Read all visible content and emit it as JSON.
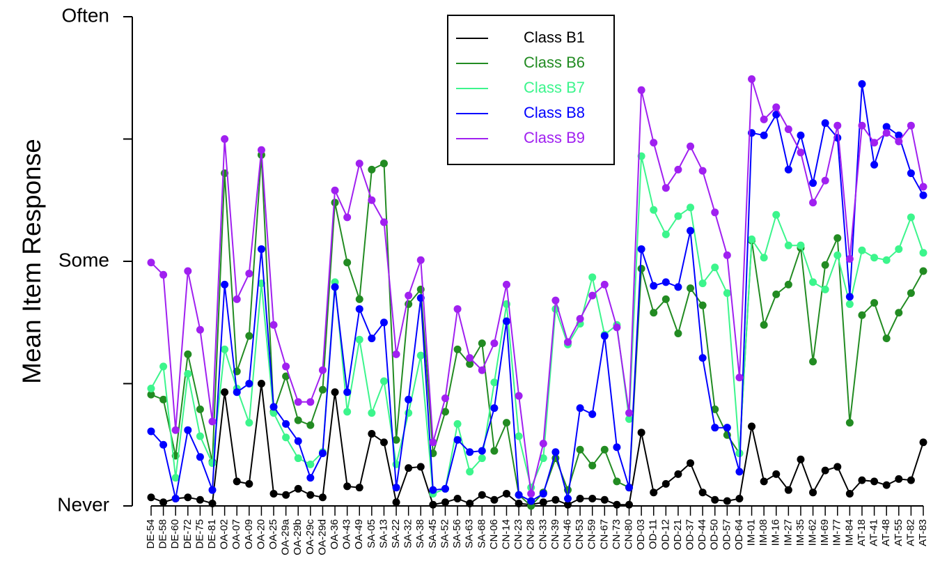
{
  "chart_data": {
    "type": "line",
    "y_label": "Mean Item Response",
    "ylim": [
      0,
      4
    ],
    "yticks": [
      {
        "value": 0,
        "label": "Never"
      },
      {
        "value": 1,
        "label": null
      },
      {
        "value": 2,
        "label": "Some"
      },
      {
        "value": 3,
        "label": null
      },
      {
        "value": 4,
        "label": "Often"
      }
    ],
    "legend": "top",
    "categories": [
      "DE-54",
      "DE-58",
      "DE-60",
      "DE-72",
      "DE-75",
      "DE-81",
      "OA-02",
      "OA-07",
      "OA-09",
      "OA-20",
      "OA-25",
      "OA-29a",
      "OA-29b",
      "OA-29c",
      "OA-29d",
      "OA-36",
      "OA-43",
      "OA-49",
      "SA-05",
      "SA-13",
      "SA-22",
      "SA-32",
      "SA-38",
      "SA-45",
      "SA-52",
      "SA-56",
      "SA-63",
      "SA-68",
      "CN-06",
      "CN-14",
      "CN-23",
      "CN-28",
      "CN-33",
      "CN-39",
      "CN-46",
      "CN-53",
      "CN-59",
      "CN-67",
      "CN-73",
      "CN-80",
      "OD-03",
      "OD-11",
      "OD-12",
      "OD-21",
      "OD-37",
      "OD-44",
      "OD-50",
      "OD-57",
      "OD-64",
      "IM-01",
      "IM-08",
      "IM-16",
      "IM-27",
      "IM-35",
      "IM-62",
      "IM-69",
      "IM-77",
      "IM-84",
      "AT-18",
      "AT-41",
      "AT-48",
      "AT-55",
      "AT-82",
      "AT-83"
    ],
    "series": [
      {
        "name": "Class B1",
        "color": "#000000",
        "values": [
          0.07,
          0.03,
          0.06,
          0.07,
          0.05,
          0.02,
          0.93,
          0.2,
          0.18,
          1.0,
          0.1,
          0.09,
          0.14,
          0.09,
          0.07,
          0.93,
          0.16,
          0.15,
          0.59,
          0.52,
          0.03,
          0.31,
          0.32,
          0.01,
          0.03,
          0.06,
          0.02,
          0.09,
          0.05,
          0.1,
          0.02,
          0.01,
          0.03,
          0.05,
          0.01,
          0.06,
          0.06,
          0.05,
          0.01,
          0.01,
          0.6,
          0.11,
          0.18,
          0.26,
          0.35,
          0.11,
          0.05,
          0.04,
          0.06,
          0.65,
          0.2,
          0.26,
          0.13,
          0.38,
          0.11,
          0.29,
          0.32,
          0.1,
          0.21,
          0.2,
          0.17,
          0.22,
          0.21,
          0.52
        ]
      },
      {
        "name": "Class B6",
        "color": "#228b22",
        "values": [
          0.91,
          0.87,
          0.41,
          1.24,
          0.79,
          0.36,
          2.72,
          1.1,
          1.39,
          2.87,
          0.77,
          1.06,
          0.7,
          0.66,
          0.95,
          2.48,
          1.99,
          1.69,
          2.75,
          2.8,
          0.54,
          1.65,
          1.77,
          0.43,
          0.77,
          1.28,
          1.16,
          1.33,
          0.45,
          0.68,
          0.09,
          0.0,
          0.11,
          0.39,
          0.13,
          0.46,
          0.33,
          0.46,
          0.2,
          0.15,
          1.94,
          1.58,
          1.69,
          1.41,
          1.78,
          1.64,
          0.79,
          0.58,
          0.43,
          2.17,
          1.48,
          1.73,
          1.81,
          2.11,
          1.18,
          1.97,
          2.19,
          0.68,
          1.56,
          1.66,
          1.37,
          1.58,
          1.74,
          1.92
        ]
      },
      {
        "name": "Class B7",
        "color": "#3cf58c",
        "values": [
          0.96,
          1.14,
          0.23,
          1.08,
          0.57,
          0.35,
          1.28,
          0.96,
          0.68,
          1.82,
          0.76,
          0.56,
          0.39,
          0.34,
          0.44,
          1.83,
          0.77,
          1.36,
          0.76,
          1.02,
          0.34,
          0.76,
          1.23,
          0.1,
          0.14,
          0.67,
          0.28,
          0.39,
          1.01,
          1.65,
          0.57,
          0.15,
          0.39,
          1.61,
          1.32,
          1.49,
          1.87,
          1.4,
          1.48,
          0.71,
          2.86,
          2.42,
          2.22,
          2.37,
          2.44,
          1.82,
          1.95,
          1.74,
          0.43,
          2.18,
          2.03,
          2.38,
          2.13,
          2.13,
          1.83,
          1.77,
          2.05,
          1.65,
          2.09,
          2.03,
          2.01,
          2.1,
          2.36,
          2.07
        ]
      },
      {
        "name": "Class B8",
        "color": "#0000ff",
        "values": [
          0.61,
          0.5,
          0.06,
          0.62,
          0.4,
          0.13,
          1.81,
          0.93,
          1.0,
          2.1,
          0.81,
          0.67,
          0.53,
          0.23,
          0.43,
          1.79,
          0.93,
          1.61,
          1.37,
          1.5,
          0.15,
          0.87,
          1.7,
          0.13,
          0.14,
          0.54,
          0.44,
          0.45,
          0.8,
          1.51,
          0.09,
          0.04,
          0.1,
          0.44,
          0.06,
          0.8,
          0.75,
          1.39,
          0.48,
          0.15,
          2.1,
          1.8,
          1.83,
          1.79,
          2.25,
          1.21,
          0.64,
          0.64,
          0.28,
          3.05,
          3.03,
          3.2,
          2.75,
          3.03,
          2.64,
          3.13,
          3.01,
          1.71,
          3.45,
          2.79,
          3.1,
          3.03,
          2.72,
          2.54
        ]
      },
      {
        "name": "Class B9",
        "color": "#a020f0",
        "values": [
          1.99,
          1.89,
          0.62,
          1.92,
          1.44,
          0.69,
          3.0,
          1.69,
          1.9,
          2.91,
          1.48,
          1.14,
          0.85,
          0.85,
          1.11,
          2.58,
          2.36,
          2.8,
          2.5,
          2.32,
          1.24,
          1.72,
          2.01,
          0.52,
          0.88,
          1.61,
          1.21,
          1.11,
          1.33,
          1.81,
          0.9,
          0.1,
          0.51,
          1.68,
          1.34,
          1.53,
          1.72,
          1.81,
          1.46,
          0.76,
          3.4,
          2.97,
          2.6,
          2.75,
          2.94,
          2.74,
          2.4,
          2.05,
          1.05,
          3.49,
          3.16,
          3.26,
          3.08,
          2.89,
          2.48,
          2.66,
          3.11,
          2.02,
          3.11,
          2.97,
          3.05,
          2.98,
          3.11,
          2.61
        ]
      }
    ]
  }
}
